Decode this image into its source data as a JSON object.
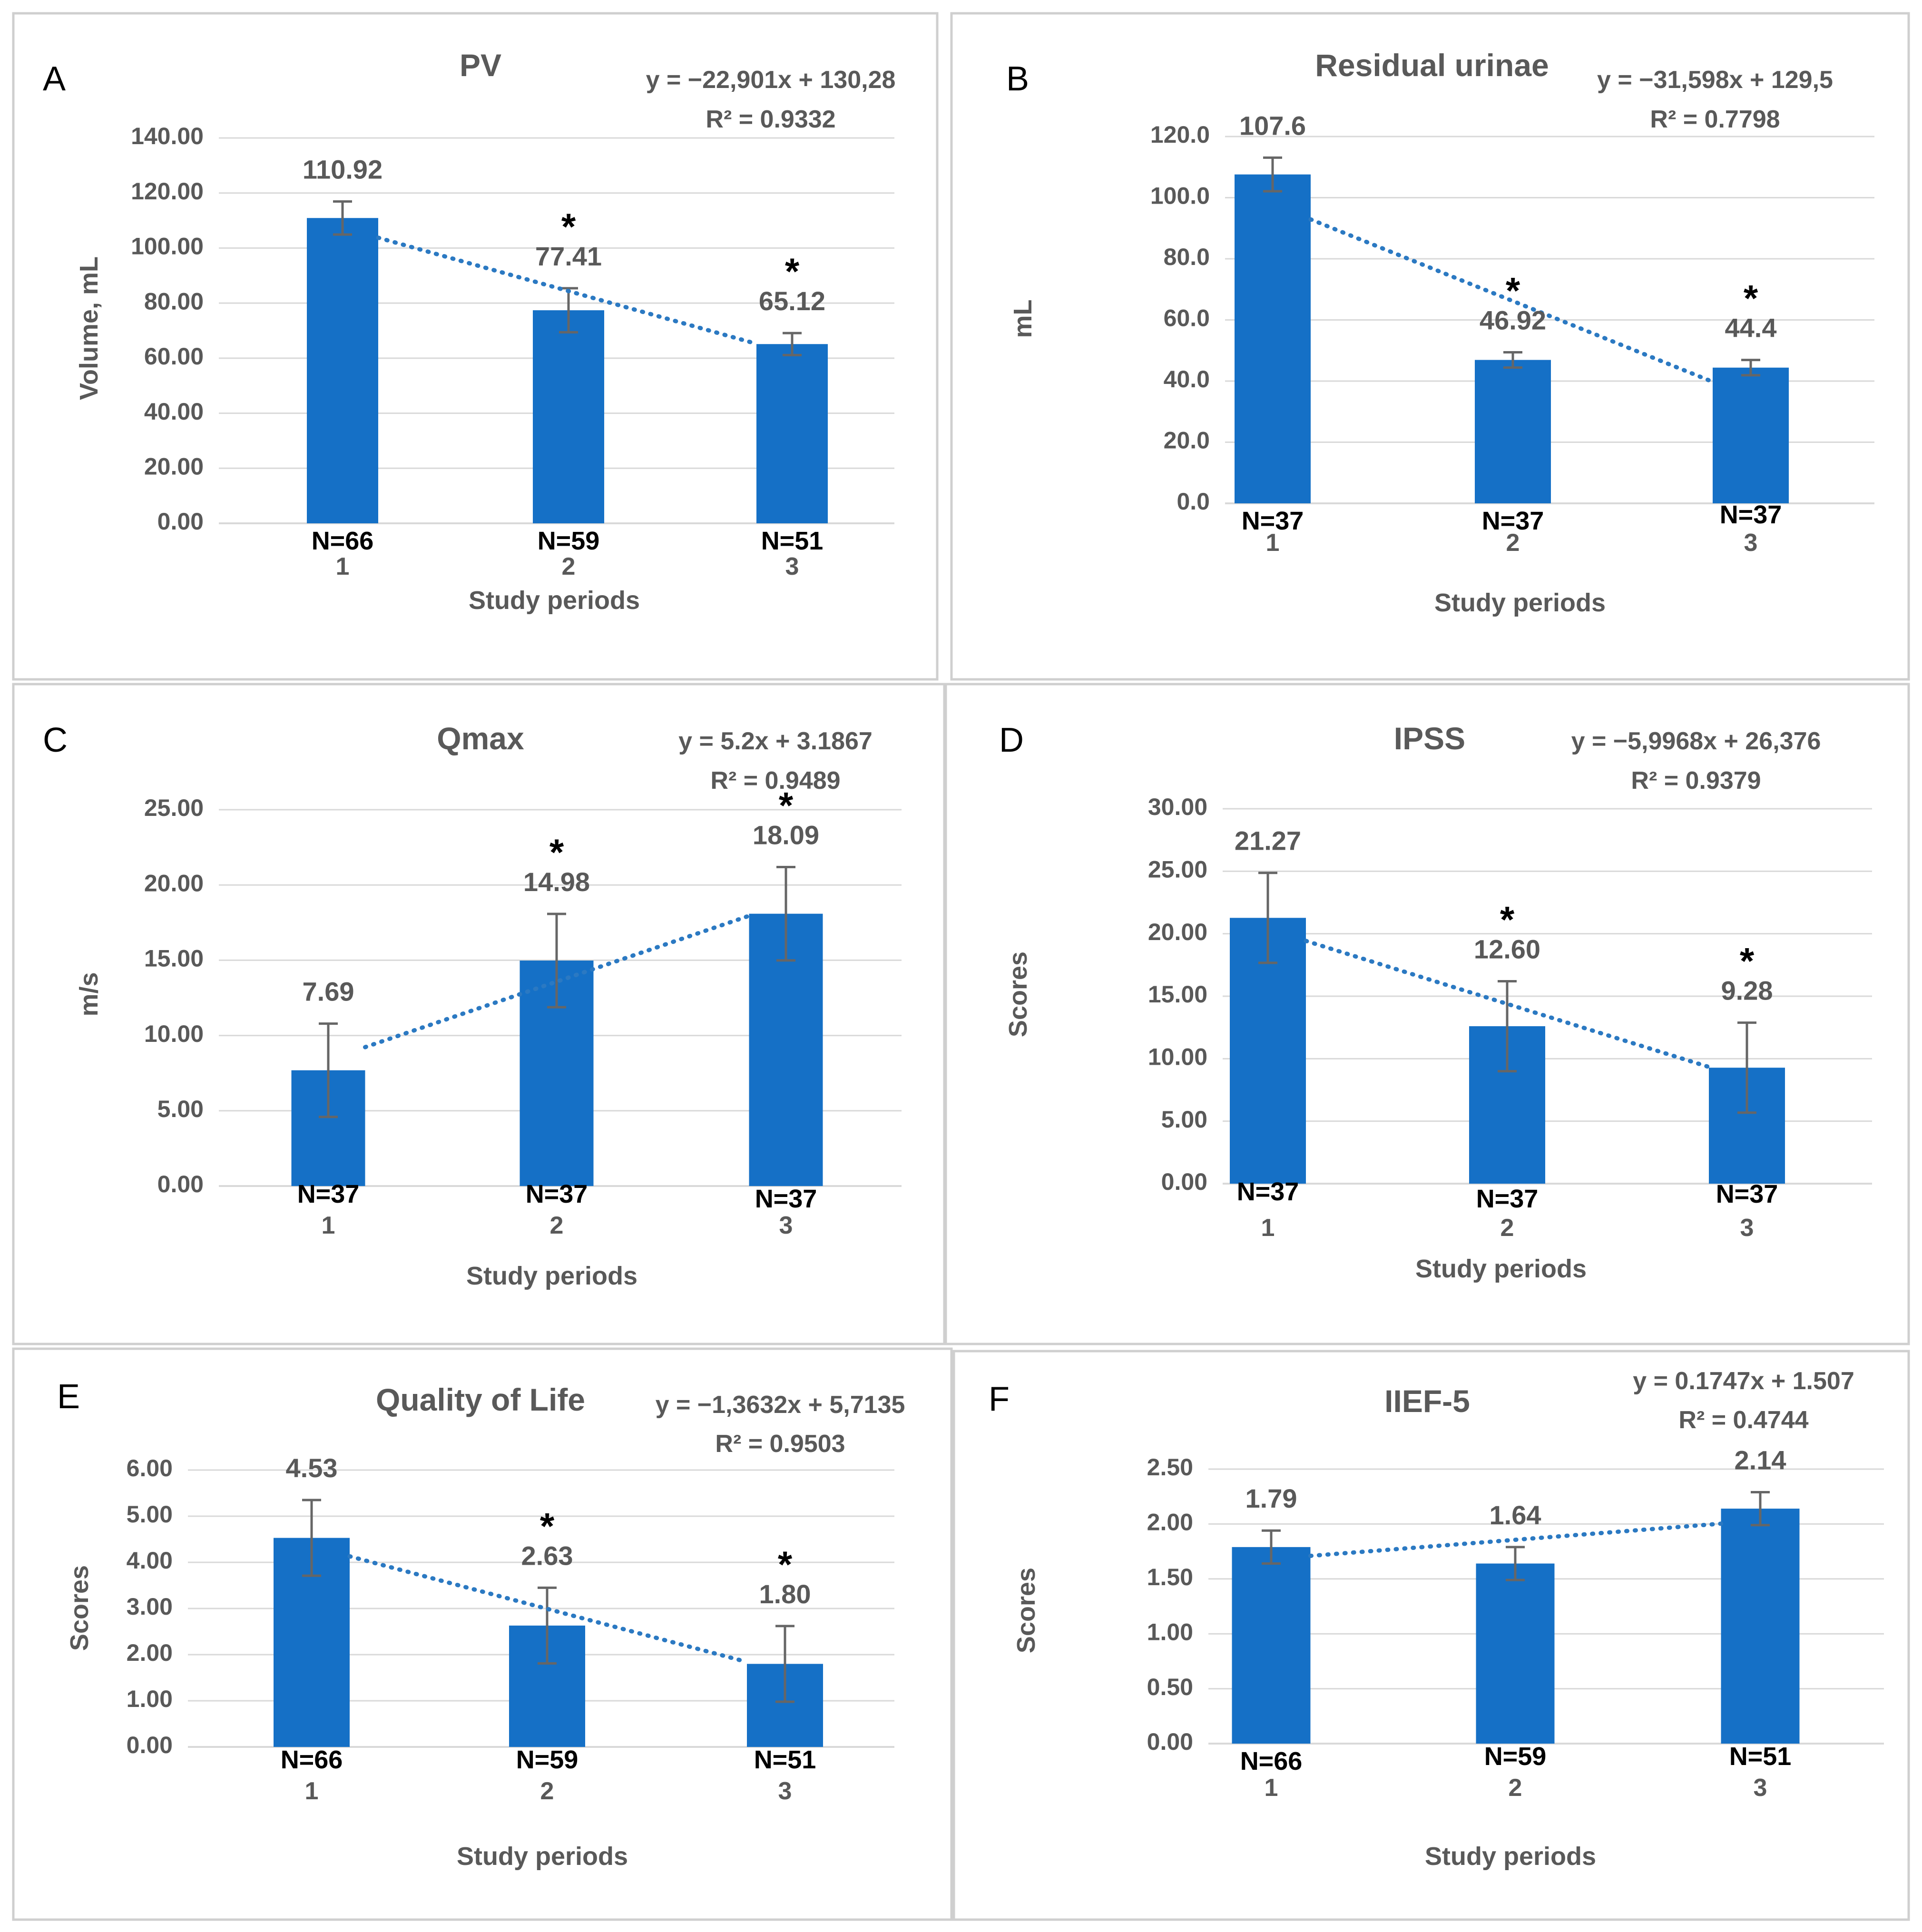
{
  "chart_data": [
    {
      "type": "bar",
      "panel_letter": "A",
      "title": "PV",
      "xlabel": "Study  periods",
      "ylabel": "Volume, mL",
      "categories": [
        "1",
        "2",
        "3"
      ],
      "values": [
        110.92,
        77.41,
        65.12
      ],
      "value_labels": [
        "110.92",
        "77.41",
        "65.12"
      ],
      "errors": [
        6,
        8,
        4
      ],
      "significance": [
        "",
        "*",
        "*"
      ],
      "n_labels": [
        "N=66",
        "N=59",
        "N=51"
      ],
      "ylim": [
        0,
        140
      ],
      "ytick_step": 20,
      "ytick_decimals": 2,
      "trend": {
        "slope": -22.901,
        "intercept": 130.28,
        "equation": "y = −22,901x + 130,28",
        "r2": "R² = 0.9332"
      }
    },
    {
      "type": "bar",
      "panel_letter": "B",
      "title": "Residual urinae",
      "xlabel": "Study periods",
      "ylabel": "mL",
      "categories": [
        "1",
        "2",
        "3"
      ],
      "values": [
        107.6,
        46.92,
        44.4
      ],
      "value_labels": [
        "107.6",
        "46.92",
        "44.4"
      ],
      "errors": [
        5.5,
        2.5,
        2.5
      ],
      "significance": [
        "",
        "*",
        "*"
      ],
      "n_labels": [
        "N=37",
        "N=37",
        "N=37"
      ],
      "ylim": [
        0,
        120
      ],
      "ytick_step": 20,
      "ytick_decimals": 1,
      "trend": {
        "slope": -31.598,
        "intercept": 129.5,
        "equation": "y = −31,598x + 129,5",
        "r2": "R² = 0.7798"
      }
    },
    {
      "type": "bar",
      "panel_letter": "C",
      "title": "Qmax",
      "xlabel": "Study periods",
      "ylabel": "m/s",
      "categories": [
        "1",
        "2",
        "3"
      ],
      "values": [
        7.69,
        14.98,
        18.09
      ],
      "value_labels": [
        "7.69",
        "14.98",
        "18.09"
      ],
      "errors": [
        3.1,
        3.1,
        3.1
      ],
      "significance": [
        "",
        "*",
        "*"
      ],
      "n_labels": [
        "N=37",
        "N=37",
        "N=37"
      ],
      "ylim": [
        0,
        25
      ],
      "ytick_step": 5,
      "ytick_decimals": 2,
      "trend": {
        "slope": 5.2,
        "intercept": 3.1867,
        "equation": "y = 5.2x + 3.1867",
        "r2": "R² = 0.9489"
      }
    },
    {
      "type": "bar",
      "panel_letter": "D",
      "title": "IPSS",
      "xlabel": "Study periods",
      "ylabel": "Scores",
      "categories": [
        "1",
        "2",
        "3"
      ],
      "values": [
        21.27,
        12.6,
        9.28
      ],
      "value_labels": [
        "21.27",
        "12.60",
        "9.28"
      ],
      "errors": [
        3.6,
        3.6,
        3.6
      ],
      "significance": [
        "",
        "*",
        "*"
      ],
      "n_labels": [
        "N=37",
        "N=37",
        "N=37"
      ],
      "ylim": [
        0,
        30
      ],
      "ytick_step": 5,
      "ytick_decimals": 2,
      "trend": {
        "slope": -5.9968,
        "intercept": 26.376,
        "equation": "y = −5,9968x + 26,376",
        "r2": "R² = 0.9379"
      }
    },
    {
      "type": "bar",
      "panel_letter": "E",
      "title": "Quality of Life",
      "xlabel": "Study periods",
      "ylabel": "Scores",
      "categories": [
        "1",
        "2",
        "3"
      ],
      "values": [
        4.53,
        2.63,
        1.8
      ],
      "value_labels": [
        "4.53",
        "2.63",
        "1.80"
      ],
      "errors": [
        0.82,
        0.82,
        0.82
      ],
      "significance": [
        "",
        "*",
        "*"
      ],
      "n_labels": [
        "N=66",
        "N=59",
        "N=51"
      ],
      "ylim": [
        0,
        6
      ],
      "ytick_step": 1,
      "ytick_decimals": 2,
      "trend": {
        "slope": -1.3632,
        "intercept": 5.7135,
        "equation": "y = −1,3632x + 5,7135",
        "r2": "R² = 0.9503"
      }
    },
    {
      "type": "bar",
      "panel_letter": "F",
      "title": "IIEF-5",
      "xlabel": "Study periods",
      "ylabel": "Scores",
      "categories": [
        "1",
        "2",
        "3"
      ],
      "values": [
        1.79,
        1.64,
        2.14
      ],
      "value_labels": [
        "1.79",
        "1.64",
        "2.14"
      ],
      "errors": [
        0.15,
        0.15,
        0.15
      ],
      "significance": [
        "",
        "",
        ""
      ],
      "n_labels": [
        "N=66",
        "N=59",
        "N=51"
      ],
      "ylim": [
        0,
        2.5
      ],
      "ytick_step": 0.5,
      "ytick_decimals": 2,
      "trend": {
        "slope": 0.1747,
        "intercept": 1.507,
        "equation": "y = 0.1747x + 1.507",
        "r2": "R² = 0.4744"
      }
    }
  ]
}
